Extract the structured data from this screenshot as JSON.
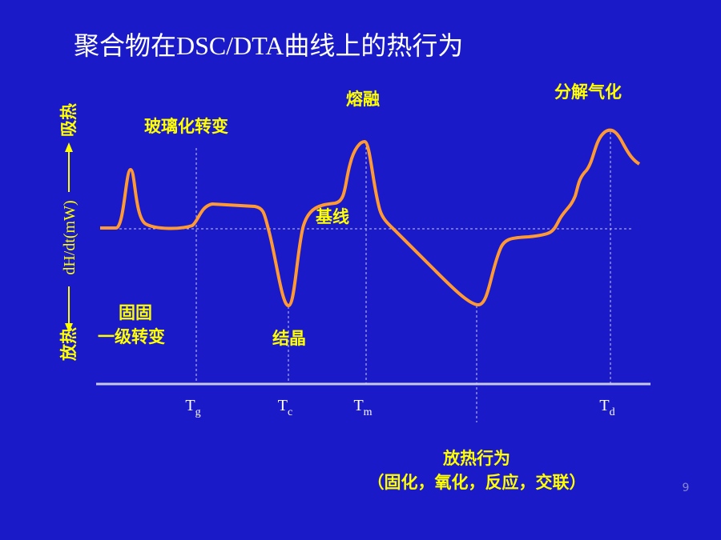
{
  "title": "聚合物在DSC/DTA曲线上的热行为",
  "y_axis": {
    "top": "吸热",
    "middle": "dH/dt(mW)",
    "bottom": "放热"
  },
  "annotations": {
    "glass_transition": "玻璃化转变",
    "melting": "熔融",
    "decomposition": "分解气化",
    "baseline": "基线",
    "solid_solid_1": "固固",
    "solid_solid_2": "一级转变",
    "crystallization": "结晶"
  },
  "markers": [
    {
      "main": "T",
      "sub": "g"
    },
    {
      "main": "T",
      "sub": "c"
    },
    {
      "main": "T",
      "sub": "m"
    },
    {
      "main": "T",
      "sub": "d"
    }
  ],
  "exotherm": {
    "line1": "放热行为",
    "line2": "（固化，氧化，反应，交联）"
  },
  "page_number": "9"
}
